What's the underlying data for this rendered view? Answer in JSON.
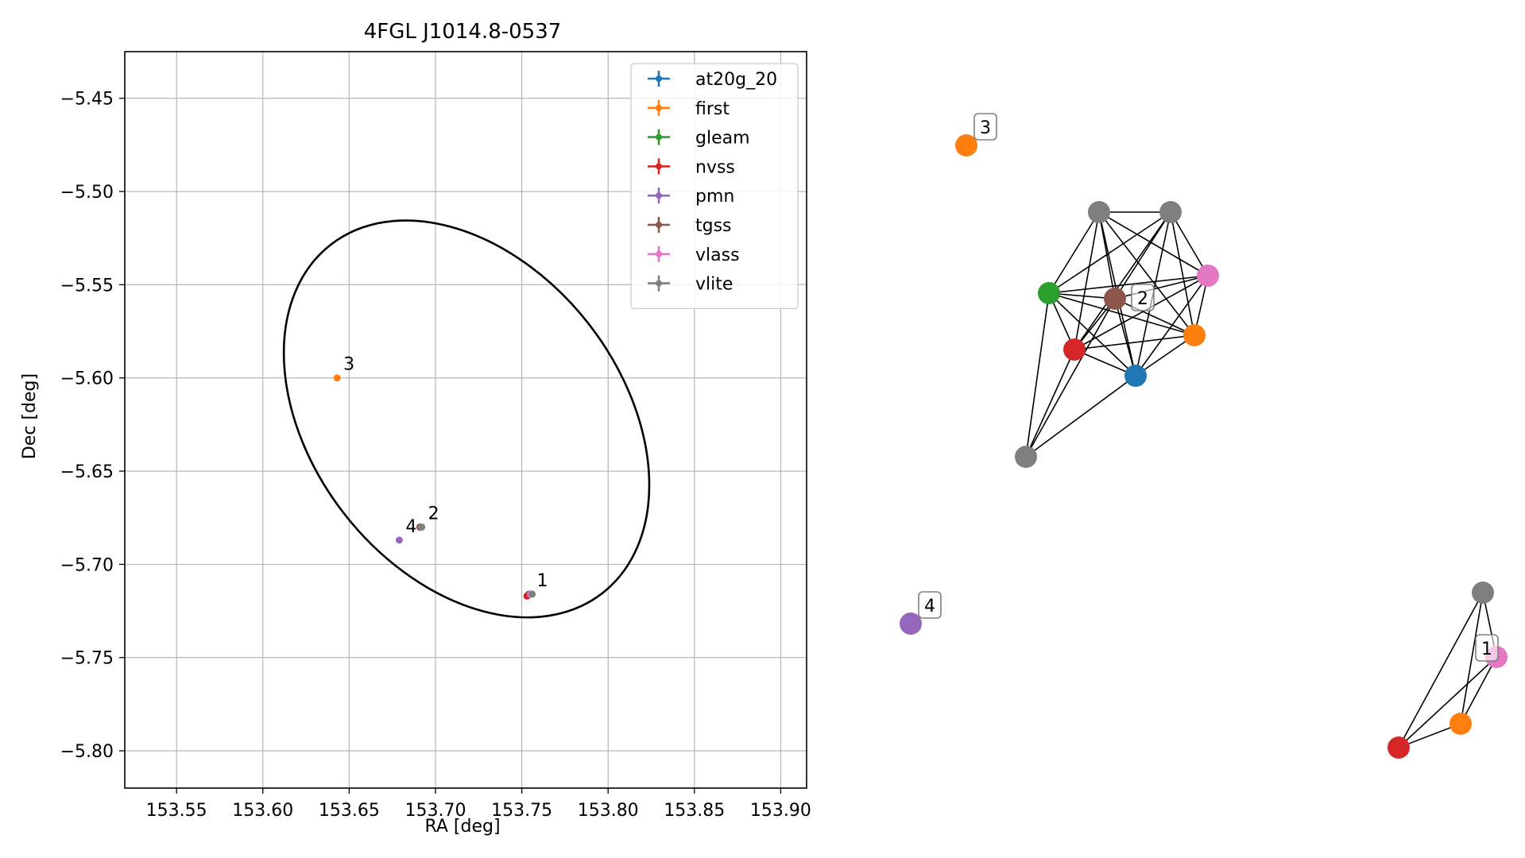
{
  "chart_data": [
    {
      "type": "scatter",
      "title": "4FGL J1014.8-0537",
      "xlabel": "RA [deg]",
      "ylabel": "Dec [deg]",
      "xlim": [
        153.52,
        153.915
      ],
      "ylim": [
        -5.82,
        -5.425
      ],
      "grid": true,
      "legend_position": "top-right",
      "xticks": [
        153.55,
        153.6,
        153.65,
        153.7,
        153.75,
        153.8,
        153.85,
        153.9
      ],
      "xtick_labels": [
        "153.55",
        "153.60",
        "153.65",
        "153.70",
        "153.75",
        "153.80",
        "153.85",
        "153.90"
      ],
      "yticks": [
        -5.45,
        -5.5,
        -5.55,
        -5.6,
        -5.65,
        -5.7,
        -5.75,
        -5.8
      ],
      "ytick_labels": [
        "−5.45",
        "−5.50",
        "−5.55",
        "−5.60",
        "−5.65",
        "−5.70",
        "−5.75",
        "−5.80"
      ],
      "series": [
        {
          "name": "at20g_20",
          "color": "#1f77b4",
          "points": [
            {
              "x": 153.754,
              "y": -5.716
            }
          ]
        },
        {
          "name": "first",
          "color": "#ff7f0e",
          "points": [
            {
              "x": 153.643,
              "y": -5.6
            },
            {
              "x": 153.755,
              "y": -5.716
            }
          ]
        },
        {
          "name": "gleam",
          "color": "#2ca02c",
          "points": [
            {
              "x": 153.691,
              "y": -5.68
            }
          ]
        },
        {
          "name": "nvss",
          "color": "#d62728",
          "points": [
            {
              "x": 153.691,
              "y": -5.68
            },
            {
              "x": 153.753,
              "y": -5.717
            }
          ]
        },
        {
          "name": "pmn",
          "color": "#9467bd",
          "points": [
            {
              "x": 153.679,
              "y": -5.687
            }
          ]
        },
        {
          "name": "tgss",
          "color": "#8c564b",
          "points": [
            {
              "x": 153.691,
              "y": -5.68
            }
          ]
        },
        {
          "name": "vlass",
          "color": "#e377c2",
          "points": [
            {
              "x": 153.692,
              "y": -5.68
            },
            {
              "x": 153.755,
              "y": -5.716
            }
          ]
        },
        {
          "name": "vlite",
          "color": "#7f7f7f",
          "points": [
            {
              "x": 153.692,
              "y": -5.68
            },
            {
              "x": 153.756,
              "y": -5.716
            }
          ]
        }
      ],
      "ellipse": {
        "center": [
          153.718,
          -5.622
        ],
        "semi_major_deg": 0.128,
        "semi_minor_deg": 0.083,
        "angle_deg": 52
      },
      "annotations": [
        {
          "text": "1",
          "x": 153.755,
          "y": -5.716
        },
        {
          "text": "2",
          "x": 153.692,
          "y": -5.68
        },
        {
          "text": "3",
          "x": 153.643,
          "y": -5.6
        },
        {
          "text": "4",
          "x": 153.679,
          "y": -5.687
        }
      ]
    },
    {
      "type": "network",
      "nodes": [
        {
          "id": "g2_vlite_a",
          "color": "#7f7f7f"
        },
        {
          "id": "g2_vlite_b",
          "color": "#7f7f7f"
        },
        {
          "id": "g2_vlass",
          "color": "#e377c2"
        },
        {
          "id": "g2_gleam",
          "color": "#2ca02c"
        },
        {
          "id": "g2_tgss",
          "color": "#8c564b",
          "label": "2"
        },
        {
          "id": "g2_first",
          "color": "#ff7f0e"
        },
        {
          "id": "g2_nvss",
          "color": "#d62728"
        },
        {
          "id": "g2_at20g",
          "color": "#1f77b4"
        },
        {
          "id": "g2_vlite_c",
          "color": "#7f7f7f"
        },
        {
          "id": "g3_first",
          "color": "#ff7f0e",
          "label": "3"
        },
        {
          "id": "g4_pmn",
          "color": "#9467bd",
          "label": "4"
        },
        {
          "id": "g1_vlite",
          "color": "#7f7f7f"
        },
        {
          "id": "g1_vlass",
          "color": "#e377c2",
          "label": "1"
        },
        {
          "id": "g1_first",
          "color": "#ff7f0e"
        },
        {
          "id": "g1_nvss",
          "color": "#d62728"
        }
      ],
      "edges": [
        [
          "g2_vlite_a",
          "g2_vlite_b"
        ],
        [
          "g2_vlite_a",
          "g2_gleam"
        ],
        [
          "g2_vlite_a",
          "g2_tgss"
        ],
        [
          "g2_vlite_a",
          "g2_nvss"
        ],
        [
          "g2_vlite_a",
          "g2_at20g"
        ],
        [
          "g2_vlite_a",
          "g2_first"
        ],
        [
          "g2_vlite_a",
          "g2_vlass"
        ],
        [
          "g2_vlite_b",
          "g2_gleam"
        ],
        [
          "g2_vlite_b",
          "g2_tgss"
        ],
        [
          "g2_vlite_b",
          "g2_nvss"
        ],
        [
          "g2_vlite_b",
          "g2_at20g"
        ],
        [
          "g2_vlite_b",
          "g2_first"
        ],
        [
          "g2_vlite_b",
          "g2_vlass"
        ],
        [
          "g2_gleam",
          "g2_tgss"
        ],
        [
          "g2_gleam",
          "g2_nvss"
        ],
        [
          "g2_gleam",
          "g2_at20g"
        ],
        [
          "g2_gleam",
          "g2_first"
        ],
        [
          "g2_gleam",
          "g2_vlass"
        ],
        [
          "g2_gleam",
          "g2_vlite_c"
        ],
        [
          "g2_tgss",
          "g2_nvss"
        ],
        [
          "g2_tgss",
          "g2_at20g"
        ],
        [
          "g2_tgss",
          "g2_first"
        ],
        [
          "g2_tgss",
          "g2_vlass"
        ],
        [
          "g2_tgss",
          "g2_vlite_c"
        ],
        [
          "g2_nvss",
          "g2_at20g"
        ],
        [
          "g2_nvss",
          "g2_first"
        ],
        [
          "g2_nvss",
          "g2_vlass"
        ],
        [
          "g2_nvss",
          "g2_vlite_c"
        ],
        [
          "g2_at20g",
          "g2_first"
        ],
        [
          "g2_at20g",
          "g2_vlass"
        ],
        [
          "g2_at20g",
          "g2_vlite_c"
        ],
        [
          "g2_first",
          "g2_vlass"
        ],
        [
          "g1_vlite",
          "g1_vlass"
        ],
        [
          "g1_vlite",
          "g1_first"
        ],
        [
          "g1_vlite",
          "g1_nvss"
        ],
        [
          "g1_vlass",
          "g1_first"
        ],
        [
          "g1_vlass",
          "g1_nvss"
        ],
        [
          "g1_first",
          "g1_nvss"
        ]
      ]
    }
  ]
}
